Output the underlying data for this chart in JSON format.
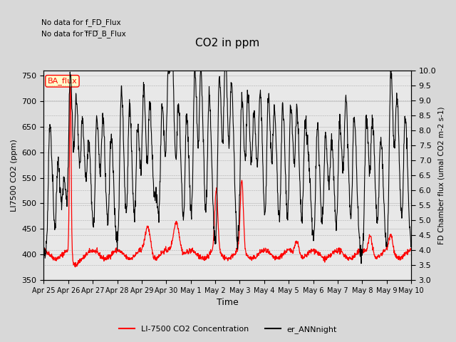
{
  "title": "CO2 in ppm",
  "xlabel": "Time",
  "ylabel_left": "LI7500 CO2 (ppm)",
  "ylabel_right": "FD Chamber flux (umal CO2 m-2 s-1)",
  "ylim_left": [
    350,
    760
  ],
  "ylim_right": [
    3.0,
    10.0
  ],
  "yticks_left": [
    350,
    400,
    450,
    500,
    550,
    600,
    650,
    700,
    750
  ],
  "yticks_right": [
    3.0,
    3.5,
    4.0,
    4.5,
    5.0,
    5.5,
    6.0,
    6.5,
    7.0,
    7.5,
    8.0,
    8.5,
    9.0,
    9.5,
    10.0
  ],
  "text_line1": "No data for f_FD_Flux",
  "text_line2": "No data for f̅FD̅_B_Flux",
  "ba_flux_label": "BA_flux",
  "legend_labels": [
    "LI-7500 CO2 Concentration",
    "er_ANNnight"
  ],
  "legend_colors": [
    "#ff0000",
    "#000000"
  ],
  "line_red_color": "#ff0000",
  "line_black_color": "#000000",
  "background_color": "#d8d8d8",
  "plot_bg_color": "#e8e8e8",
  "num_days": 15,
  "seed": 42,
  "xtick_labels": [
    "Apr 25",
    "Apr 26",
    "Apr 27",
    "Apr 28",
    "Apr 29",
    "Apr 30",
    "May 1",
    "May 2",
    "May 3",
    "May 4",
    "May 5",
    "May 6",
    "May 7",
    "May 8",
    "May 9",
    "May 10"
  ]
}
